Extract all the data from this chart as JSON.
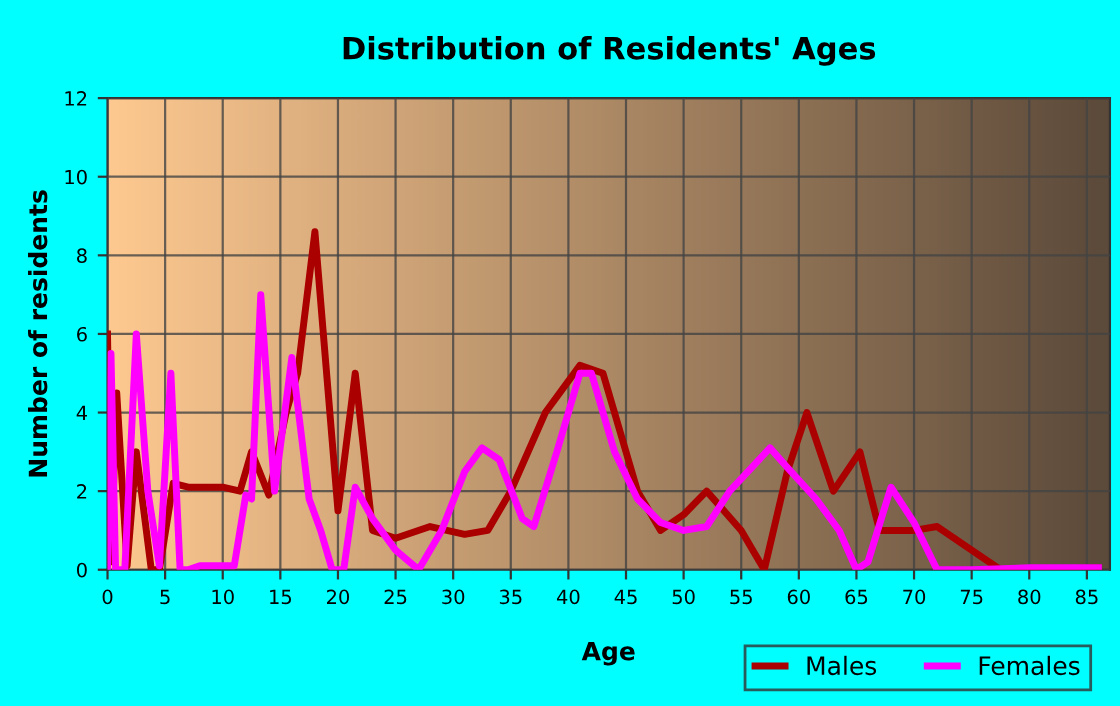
{
  "chart_data": {
    "type": "line",
    "title": "Distribution of Residents' Ages",
    "xlabel": "Age",
    "ylabel": "Number of residents",
    "xlim": [
      0,
      87
    ],
    "ylim": [
      0,
      12
    ],
    "xticks": [
      0,
      5,
      10,
      15,
      20,
      25,
      30,
      35,
      40,
      45,
      50,
      55,
      60,
      65,
      70,
      75,
      80,
      85
    ],
    "yticks": [
      0,
      2,
      4,
      6,
      8,
      10,
      12
    ],
    "grid": true,
    "legend": "bottom right",
    "marker": "none",
    "line_style": "solid",
    "series": [
      {
        "name": "Males",
        "color": "#aa0000",
        "x": [
          0,
          0.3,
          0.8,
          1.7,
          2.5,
          3.8,
          4.5,
          5.7,
          7,
          10,
          11.5,
          12.5,
          14,
          15.5,
          16.5,
          18,
          20,
          21.5,
          23,
          25,
          28,
          31,
          33,
          35,
          38,
          41,
          43,
          46,
          48,
          50,
          52,
          55,
          57,
          59,
          60.7,
          63,
          65.3,
          67,
          70,
          72,
          75,
          77.5,
          80,
          86
        ],
        "values": [
          6,
          0.2,
          4.5,
          0.1,
          3,
          0,
          0,
          2.2,
          2.1,
          2.1,
          2,
          3,
          1.9,
          4,
          5,
          8.6,
          1.5,
          5,
          1,
          0.8,
          1.1,
          0.9,
          1,
          2,
          4,
          5.2,
          5,
          2,
          1,
          1.4,
          2,
          1,
          0,
          2.5,
          4,
          2,
          3,
          1,
          1,
          1.1,
          0.5,
          0,
          0,
          0.05
        ]
      },
      {
        "name": "Females",
        "color": "#ff00ff",
        "x": [
          0,
          0.3,
          0.7,
          1.5,
          2.5,
          3.5,
          4.5,
          5.5,
          6.3,
          7,
          8,
          10,
          11,
          12,
          12.5,
          13.3,
          14.5,
          16,
          17,
          17.5,
          18.5,
          19.5,
          20.5,
          21.5,
          23,
          25,
          27,
          29,
          31,
          32.5,
          34,
          36,
          37,
          39,
          41,
          42,
          44,
          46,
          48,
          50,
          52,
          54,
          57.5,
          59,
          61.5,
          63.5,
          65,
          66,
          68,
          70,
          72,
          75,
          80,
          86
        ],
        "values": [
          0,
          5.5,
          0,
          0,
          6,
          2,
          0.1,
          5,
          0,
          0,
          0.1,
          0.1,
          0.1,
          1.9,
          1.8,
          7,
          2,
          5.4,
          3,
          1.8,
          1,
          0,
          0,
          2.1,
          1.3,
          0.5,
          0,
          1,
          2.5,
          3.1,
          2.8,
          1.3,
          1.1,
          3,
          5,
          5,
          3,
          1.8,
          1.2,
          1,
          1.1,
          2,
          3.1,
          2.6,
          1.8,
          1,
          0,
          0.2,
          2.1,
          1.2,
          0,
          0,
          0.05,
          0.05
        ]
      }
    ]
  }
}
